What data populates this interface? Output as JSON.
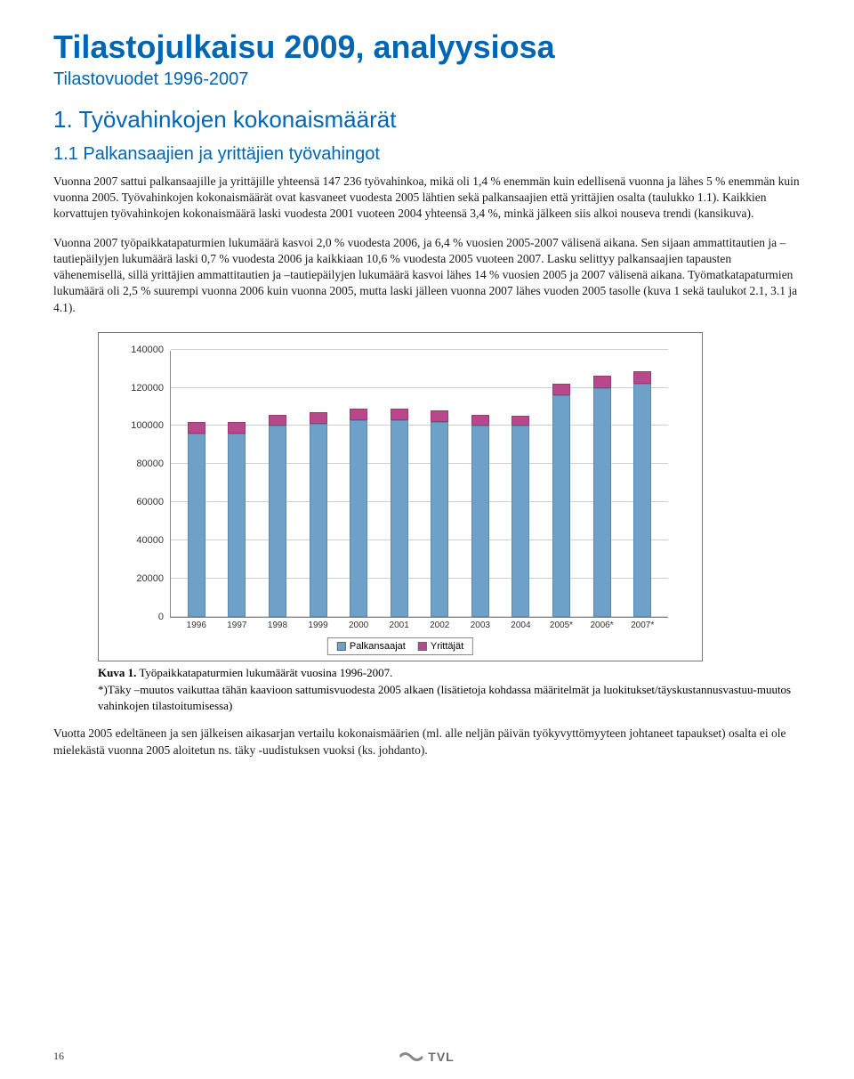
{
  "title": "Tilastojulkaisu 2009, analyysiosa",
  "subtitle": "Tilastovuodet 1996-2007",
  "h1": "1. Työvahinkojen kokonaismäärät",
  "h2": "1.1 Palkansaajien ja yrittäjien työvahingot",
  "para1": "Vuonna 2007 sattui palkansaajille ja yrittäjille yhteensä 147 236 työvahinkoa, mikä oli 1,4 % enemmän kuin edellisenä vuonna ja lähes 5 % enemmän kuin vuonna 2005. Työvahinkojen kokonaismäärät ovat kasvaneet vuodesta 2005 lähtien sekä palkansaajien että yrittäjien osalta (taulukko 1.1). Kaikkien korvattujen työvahinkojen kokonaismäärä laski vuodesta 2001 vuoteen 2004 yhteensä 3,4 %, minkä jälkeen siis alkoi nouseva trendi (kansikuva).",
  "para2": "Vuonna 2007 työpaikkatapaturmien lukumäärä kasvoi 2,0 % vuodesta 2006, ja 6,4 % vuosien 2005-2007 välisenä aikana. Sen sijaan ammattitautien ja –tautiepäilyjen lukumäärä laski 0,7 % vuodesta 2006 ja kaikkiaan 10,6 % vuodesta 2005 vuoteen 2007. Lasku selittyy palkansaajien tapausten vähenemisellä, sillä yrittäjien ammattitautien ja –tautiepäilyjen lukumäärä kasvoi lähes 14 % vuosien 2005 ja 2007 välisenä aikana. Työmatkatapaturmien lukumäärä oli 2,5 % suurempi vuonna 2006 kuin vuonna 2005, mutta laski jälleen vuonna 2007 lähes vuoden 2005 tasolle (kuva 1 sekä taulukot 2.1, 3.1 ja 4.1).",
  "chart": {
    "type": "stacked-bar",
    "ymax": 140000,
    "ytick_step": 20000,
    "yticks": [
      "0",
      "20000",
      "40000",
      "60000",
      "80000",
      "100000",
      "120000",
      "140000"
    ],
    "categories": [
      "1996",
      "1997",
      "1998",
      "1999",
      "2000",
      "2001",
      "2002",
      "2003",
      "2004",
      "2005*",
      "2006*",
      "2007*"
    ],
    "series_palk": [
      96000,
      96000,
      100000,
      101000,
      103000,
      103000,
      102000,
      100000,
      100000,
      116000,
      120000,
      122000
    ],
    "series_yrit": [
      6000,
      6000,
      6000,
      6000,
      6000,
      6000,
      6000,
      6000,
      5500,
      6000,
      6500,
      6500
    ],
    "color_palk": "#6ea0c8",
    "color_yrit": "#b8488b",
    "grid_color": "#d0d0d0",
    "legend": {
      "palk": "Palkansaajat",
      "yrit": "Yrittäjät"
    }
  },
  "caption_bold": "Kuva 1.",
  "caption_rest": " Työpaikkatapaturmien lukumäärät vuosina 1996-2007.",
  "caption_note": "*)Täky –muutos vaikuttaa tähän kaavioon sattumisvuodesta 2005 alkaen (lisätietoja kohdassa määritelmät ja luokitukset/täyskustannusvastuu-muutos vahinkojen tilastoitumisessa)",
  "para3": "Vuotta 2005 edeltäneen ja sen jälkeisen aikasarjan vertailu kokonaismäärien (ml. alle neljän päivän työkyvyttömyyteen johtaneet tapaukset) osalta ei ole mielekästä vuonna 2005 aloitetun ns. täky -uudistuksen vuoksi (ks. johdanto).",
  "page_number": "16",
  "logo": "TVL"
}
